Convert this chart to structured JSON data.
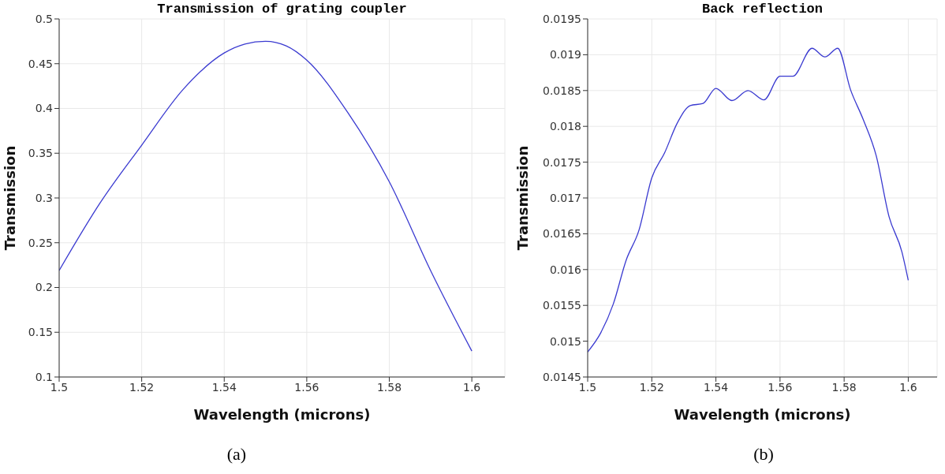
{
  "chart_data": [
    {
      "type": "line",
      "title": "Transmission of grating coupler",
      "xlabel": "Wavelength (microns)",
      "ylabel": "Transmission",
      "annotations": [
        "(a)"
      ],
      "x": [
        1.5,
        1.51,
        1.52,
        1.53,
        1.54,
        1.545,
        1.55,
        1.555,
        1.56,
        1.57,
        1.58,
        1.59,
        1.6
      ],
      "series": [
        {
          "color": "#3a3ad0",
          "values": [
            0.219,
            0.295,
            0.359,
            0.421,
            0.462,
            0.472,
            0.475,
            0.47,
            0.454,
            0.395,
            0.318,
            0.219,
            0.129
          ]
        }
      ],
      "xlim": [
        1.5,
        1.608
      ],
      "xticks": [
        1.5,
        1.52,
        1.54,
        1.56,
        1.58,
        1.6
      ],
      "ylim": [
        0.1,
        0.5
      ],
      "yticks": [
        0.1,
        0.15,
        0.2,
        0.25,
        0.3,
        0.35,
        0.4,
        0.45,
        0.5
      ],
      "grid": true
    },
    {
      "type": "line",
      "title": "Back reflection",
      "xlabel": "Wavelength (microns)",
      "ylabel": "Transmission",
      "annotations": [
        "(b)"
      ],
      "x": [
        1.5,
        1.504,
        1.508,
        1.512,
        1.516,
        1.52,
        1.524,
        1.528,
        1.532,
        1.536,
        1.54,
        1.545,
        1.55,
        1.555,
        1.56,
        1.564,
        1.57,
        1.574,
        1.578,
        1.582,
        1.586,
        1.59,
        1.594,
        1.598,
        1.6
      ],
      "series": [
        {
          "color": "#3a3ad0",
          "values": [
            0.01485,
            0.01511,
            0.01552,
            0.01613,
            0.01655,
            0.01728,
            0.01763,
            0.01805,
            0.01829,
            0.01832,
            0.01853,
            0.01836,
            0.0185,
            0.01837,
            0.0187,
            0.0187,
            0.01909,
            0.01897,
            0.01909,
            0.01851,
            0.01809,
            0.01759,
            0.01674,
            0.01625,
            0.01585
          ]
        }
      ],
      "xlim": [
        1.5,
        1.609
      ],
      "xticks": [
        1.5,
        1.52,
        1.54,
        1.56,
        1.58,
        1.6
      ],
      "ylim": [
        0.0145,
        0.0195
      ],
      "yticks": [
        0.0145,
        0.015,
        0.0155,
        0.016,
        0.0165,
        0.017,
        0.0175,
        0.018,
        0.0185,
        0.019,
        0.0195
      ],
      "grid": true
    }
  ]
}
